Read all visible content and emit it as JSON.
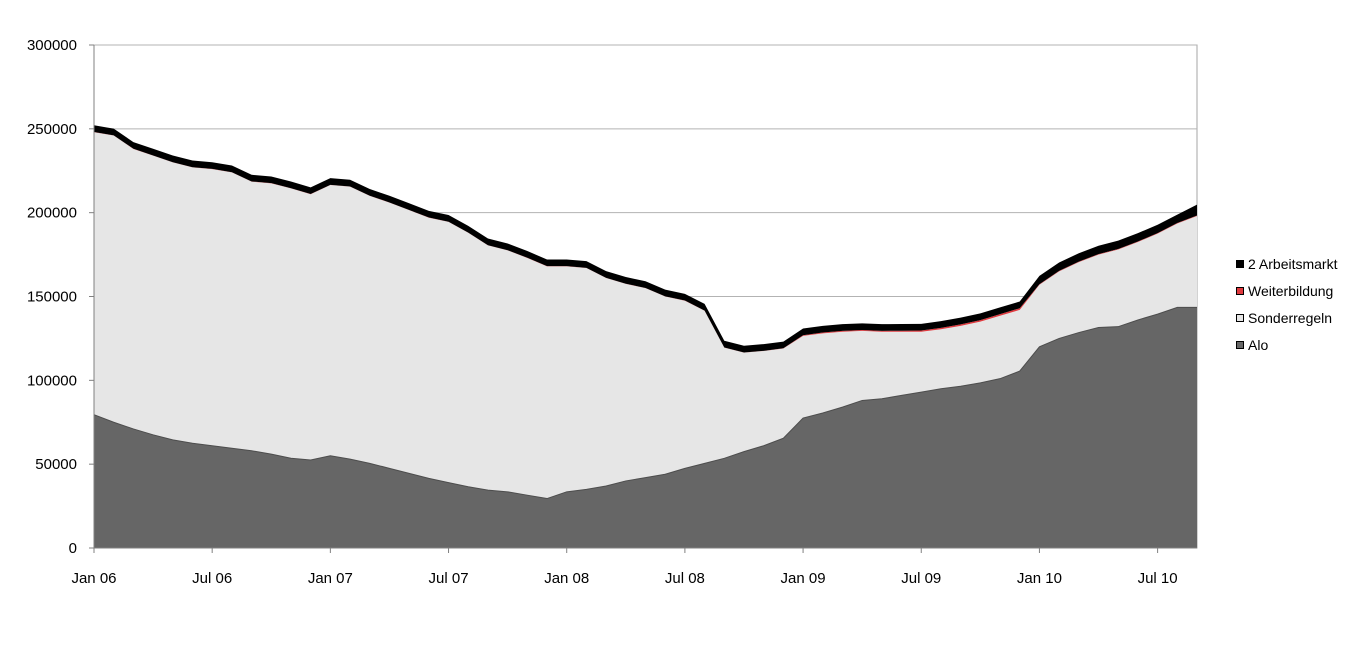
{
  "chart_data": {
    "type": "area",
    "stacked": true,
    "title": "",
    "xlabel": "",
    "ylabel": "",
    "ylim": [
      0,
      300000
    ],
    "yticks": [
      0,
      50000,
      100000,
      150000,
      200000,
      250000,
      300000
    ],
    "ytick_labels": [
      "0",
      "50000",
      "100000",
      "150000",
      "200000",
      "250000",
      "300000"
    ],
    "xtick_labels": [
      {
        "index": 0,
        "label": "Jan 06"
      },
      {
        "index": 6,
        "label": "Jul 06"
      },
      {
        "index": 12,
        "label": "Jan 07"
      },
      {
        "index": 18,
        "label": "Jul 07"
      },
      {
        "index": 24,
        "label": "Jan 08"
      },
      {
        "index": 30,
        "label": "Jul 08"
      },
      {
        "index": 36,
        "label": "Jan 09"
      },
      {
        "index": 42,
        "label": "Jul 09"
      },
      {
        "index": 48,
        "label": "Jan 10"
      },
      {
        "index": 54,
        "label": "Jul 10"
      }
    ],
    "x": [
      "Jan 06",
      "Feb 06",
      "Mar 06",
      "Apr 06",
      "May 06",
      "Jun 06",
      "Jul 06",
      "Aug 06",
      "Sep 06",
      "Oct 06",
      "Nov 06",
      "Dec 06",
      "Jan 07",
      "Feb 07",
      "Mar 07",
      "Apr 07",
      "May 07",
      "Jun 07",
      "Jul 07",
      "Aug 07",
      "Sep 07",
      "Oct 07",
      "Nov 07",
      "Dec 07",
      "Jan 08",
      "Feb 08",
      "Mar 08",
      "Apr 08",
      "May 08",
      "Jun 08",
      "Jul 08",
      "Aug 08",
      "Sep 08",
      "Oct 08",
      "Nov 08",
      "Dec 08",
      "Jan 09",
      "Feb 09",
      "Mar 09",
      "Apr 09",
      "May 09",
      "Jun 09",
      "Jul 09",
      "Aug 09",
      "Sep 09",
      "Oct 09",
      "Nov 09",
      "Dec 09",
      "Jan 10",
      "Feb 10",
      "Mar 10",
      "Apr 10",
      "May 10",
      "Jun 10",
      "Jul 10",
      "Aug 10",
      "Sep 10"
    ],
    "grid": {
      "horizontal": true,
      "vertical": false
    },
    "legend_position": "right",
    "series": [
      {
        "name": "Alo",
        "color": "#666666",
        "values": [
          79500,
          75000,
          71000,
          67500,
          64500,
          62500,
          61000,
          59500,
          58000,
          56000,
          53500,
          52500,
          55000,
          53000,
          50500,
          47500,
          44500,
          41500,
          39000,
          36500,
          34500,
          33500,
          31500,
          29500,
          33500,
          35000,
          37000,
          40000,
          42000,
          44000,
          47500,
          50500,
          53500,
          57500,
          61000,
          65500,
          77500,
          80500,
          84000,
          88000,
          89000,
          91000,
          93000,
          95000,
          96500,
          98500,
          101000,
          105500,
          120000,
          125000,
          128500,
          131500,
          132000,
          136000,
          139500,
          143500,
          143500
        ]
      },
      {
        "name": "Sonderregeln",
        "color": "#e6e6e6",
        "values": [
          168500,
          171000,
          167000,
          166500,
          165500,
          164500,
          165000,
          164500,
          160500,
          161500,
          161000,
          158500,
          161500,
          162500,
          159500,
          158500,
          157000,
          155500,
          155500,
          151500,
          146000,
          144000,
          141500,
          138500,
          134500,
          132000,
          124000,
          117500,
          113000,
          106000,
          100000,
          91000,
          66000,
          59000,
          56500,
          53500,
          49000,
          47500,
          45000,
          41500,
          40000,
          38000,
          36000,
          35500,
          36000,
          36500,
          37500,
          36500,
          37000,
          40000,
          42000,
          43500,
          46000,
          46500,
          48000,
          50000,
          54500
        ]
      },
      {
        "name": "Weiterbildung",
        "color": "#e0393e",
        "values": [
          100,
          100,
          100,
          100,
          100,
          100,
          100,
          100,
          100,
          100,
          100,
          100,
          100,
          100,
          100,
          100,
          100,
          100,
          100,
          100,
          100,
          100,
          100,
          100,
          100,
          100,
          100,
          100,
          100,
          100,
          100,
          100,
          100,
          100,
          100,
          100,
          400,
          500,
          500,
          500,
          500,
          600,
          700,
          800,
          900,
          900,
          1000,
          1000,
          300,
          300,
          300,
          300,
          300,
          300,
          300,
          300,
          300
        ]
      },
      {
        "name": "2 Arbeitsmarkt",
        "color": "#000000",
        "values": [
          4000,
          4000,
          4000,
          4000,
          4000,
          4000,
          4000,
          4000,
          4000,
          4000,
          4000,
          4000,
          4000,
          4000,
          4000,
          4000,
          4000,
          4000,
          4000,
          4000,
          4000,
          4000,
          4000,
          4000,
          4000,
          4000,
          4000,
          4000,
          4000,
          4000,
          4000,
          4000,
          4000,
          4000,
          4000,
          4000,
          4000,
          4000,
          4000,
          4000,
          4000,
          4000,
          4000,
          4000,
          4000,
          4000,
          4000,
          4000,
          5000,
          5000,
          5000,
          5000,
          5000,
          5000,
          5000,
          5000,
          6500
        ]
      }
    ],
    "legend_order": [
      "2 Arbeitsmarkt",
      "Weiterbildung",
      "Sonderregeln",
      "Alo"
    ]
  }
}
